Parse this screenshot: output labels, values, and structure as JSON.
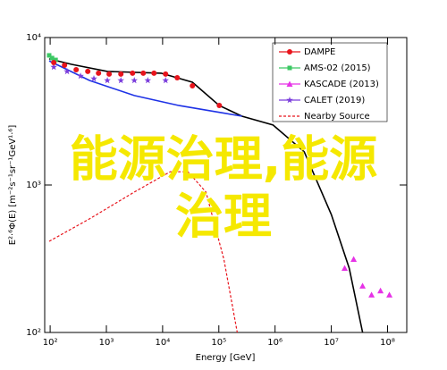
{
  "chart_data": {
    "type": "line",
    "log_x": true,
    "log_y": true,
    "xlabel": "Energy [GeV]",
    "ylabel": "E²·⁶Φ(E) [m⁻²s⁻¹sr⁻¹GeV¹·⁶]",
    "overlay_text": [
      "能源治理,能源",
      "治理"
    ],
    "xlim": [
      80,
      220000000
    ],
    "ylim": [
      100,
      10000
    ],
    "xticks": [
      {
        "value": 100,
        "label": "10²"
      },
      {
        "value": 1000,
        "label": "10³"
      },
      {
        "value": 10000,
        "label": "10⁴"
      },
      {
        "value": 100000,
        "label": "10⁵"
      },
      {
        "value": 1000000,
        "label": "10⁶"
      },
      {
        "value": 10000000,
        "label": "10⁷"
      },
      {
        "value": 100000000,
        "label": "10⁸"
      }
    ],
    "yticks": [
      {
        "value": 100,
        "label": "10²"
      },
      {
        "value": 1000,
        "label": "10³"
      },
      {
        "value": 10000,
        "label": "10⁴"
      }
    ],
    "series": [
      {
        "name": "DAMPE",
        "color": "#e8141c",
        "marker": "circle",
        "style": "points",
        "x": [
          116,
          180,
          290,
          467,
          725,
          1120,
          1810,
          2920,
          4530,
          7030,
          11300,
          18200,
          33900,
          102000
        ],
        "values": [
          6770,
          6490,
          6050,
          5890,
          5730,
          5650,
          5650,
          5730,
          5730,
          5730,
          5650,
          5340,
          4710,
          3460
        ]
      },
      {
        "name": "AMS-02 (2015)",
        "color": "#3cc864",
        "marker": "square",
        "style": "points",
        "x": [
          96,
          108,
          125
        ],
        "values": [
          7570,
          7260,
          7050
        ]
      },
      {
        "name": "KASCADE (2013)",
        "color": "#e632e6",
        "marker": "triangle",
        "style": "points",
        "x": [
          17300000,
          25000000,
          36000000,
          52000000,
          75000000,
          108000000
        ],
        "values": [
          273,
          314,
          207,
          180,
          192,
          180
        ]
      },
      {
        "name": "CALET (2019)",
        "color": "#7a3cdc",
        "marker": "star",
        "style": "points",
        "x": [
          116,
          200,
          347,
          600,
          1040,
          1810,
          3140,
          5450,
          11300
        ],
        "values": [
          6310,
          5890,
          5480,
          5260,
          5120,
          5120,
          5120,
          5120,
          5120
        ]
      },
      {
        "name": "Nearby Source",
        "color": "#e8141c",
        "style": "dashed",
        "x": [
          96,
          500,
          3140,
          13600,
          28300,
          59000,
          123000,
          213000
        ],
        "values": [
          415,
          589,
          895,
          1230,
          1230,
          895,
          314,
          100
        ]
      },
      {
        "color": "#000000",
        "style": "solid",
        "x": [
          96,
          241,
          1040,
          9450,
          33900,
          102000,
          257000,
          920000,
          3300000,
          10000000,
          20800000,
          36000000
        ],
        "values": [
          7160,
          6580,
          5890,
          5730,
          4980,
          3460,
          2930,
          2550,
          1680,
          631,
          273,
          100
        ]
      },
      {
        "color": "#1e32e6",
        "style": "solid",
        "x": [
          96,
          500,
          3140,
          19600,
          257000
        ],
        "values": [
          6950,
          5120,
          4040,
          3460,
          2930
        ]
      }
    ]
  }
}
